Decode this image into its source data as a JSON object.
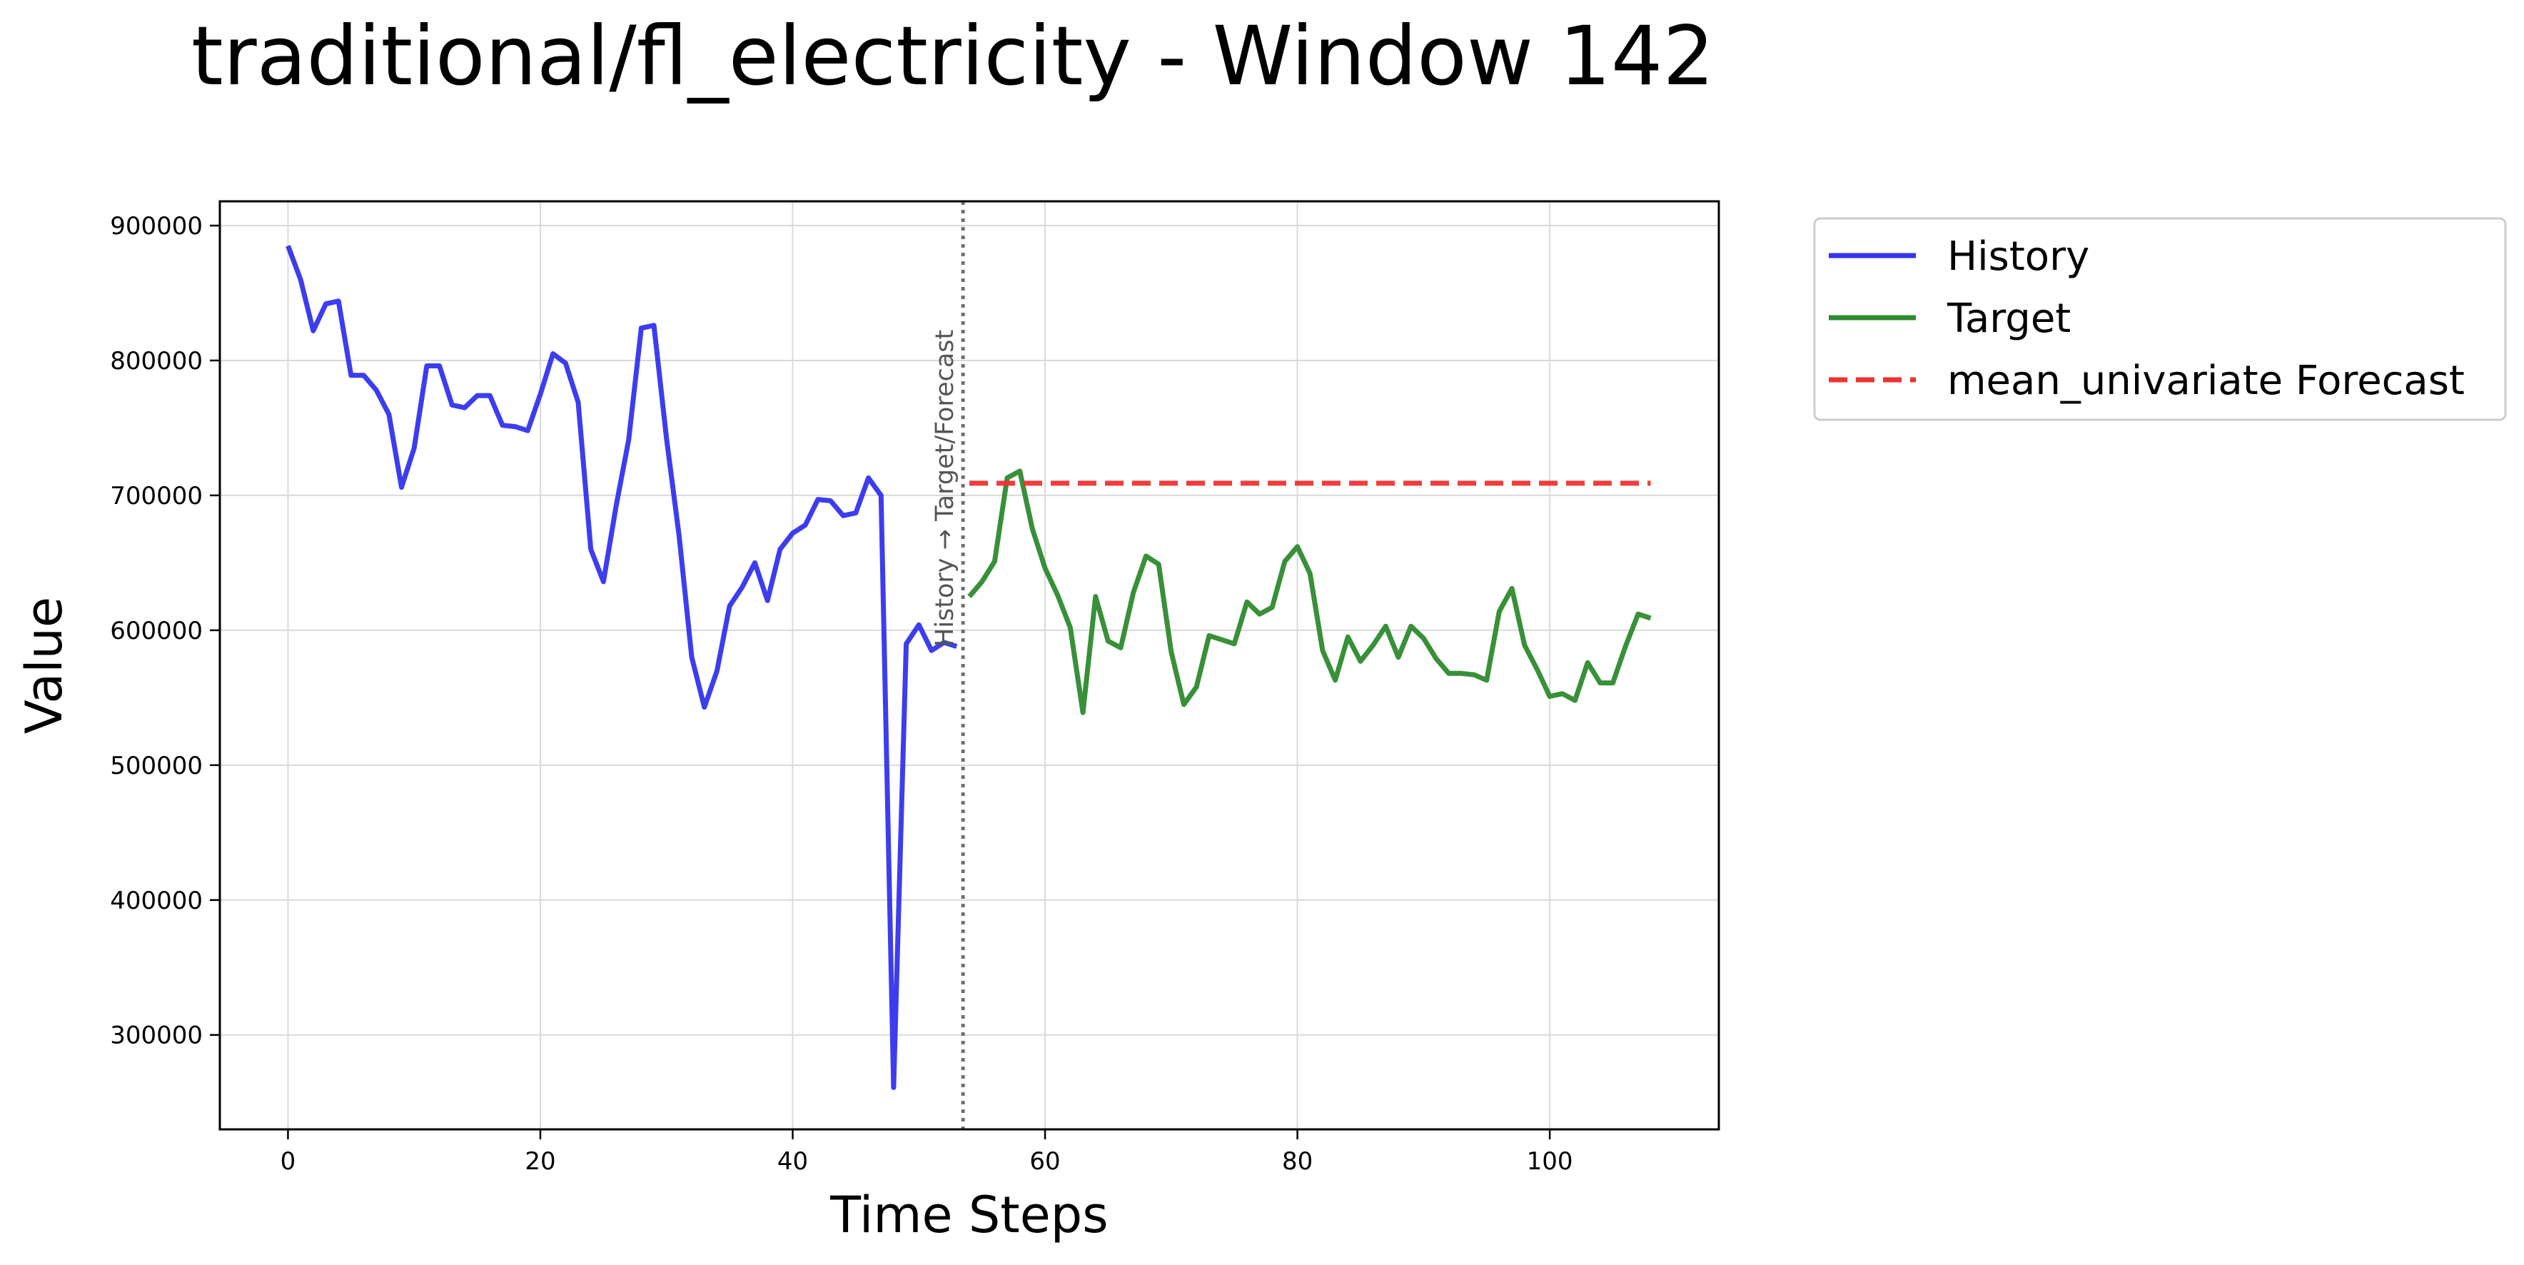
{
  "chart_data": {
    "type": "line",
    "title": "traditional/fl_electricity - Window 142",
    "xlabel": "Time Steps",
    "ylabel": "Value",
    "xlim": [
      -5.4,
      113.4
    ],
    "ylim": [
      230000,
      918000
    ],
    "xticks": [
      0,
      20,
      40,
      60,
      80,
      100
    ],
    "yticks": [
      300000,
      400000,
      500000,
      600000,
      700000,
      800000,
      900000
    ],
    "grid": true,
    "legend_position": "outside-top-right",
    "split_x": 53.5,
    "split_annotation": "History → Target/Forecast",
    "series": [
      {
        "name": "History",
        "color": "#3333ee",
        "style": "solid",
        "x_start": 0,
        "values": [
          885000,
          860000,
          822000,
          842000,
          844000,
          789000,
          789000,
          778000,
          760000,
          706000,
          735000,
          796000,
          796000,
          767000,
          765000,
          774000,
          774000,
          752000,
          751000,
          748000,
          775000,
          805000,
          798000,
          769000,
          660000,
          636000,
          692000,
          741000,
          824000,
          826000,
          742000,
          670000,
          580000,
          543000,
          570000,
          618000,
          632000,
          650000,
          622000,
          660000,
          672000,
          678000,
          697000,
          696000,
          685000,
          687000,
          713000,
          700000,
          261000,
          590000,
          604000,
          585000,
          591000,
          588000
        ]
      },
      {
        "name": "Target",
        "color": "#2d8a2d",
        "style": "solid",
        "x_start": 54,
        "values": [
          625000,
          636000,
          651000,
          713000,
          718000,
          675000,
          646000,
          626000,
          602000,
          539000,
          625000,
          592000,
          587000,
          628000,
          655000,
          649000,
          584000,
          545000,
          558000,
          596000,
          593000,
          590000,
          621000,
          612000,
          617000,
          651000,
          662000,
          642000,
          585000,
          563000,
          595000,
          577000,
          589000,
          603000,
          580000,
          603000,
          594000,
          579000,
          568000,
          568000,
          567000,
          563000,
          614000,
          631000,
          589000,
          571000,
          551000,
          553000,
          548000,
          576000,
          561000,
          561000,
          588000,
          612000,
          609000
        ]
      },
      {
        "name": "mean_univariate Forecast",
        "color": "#ee3333",
        "style": "dashed",
        "x_start": 54,
        "values": [
          709000,
          709000,
          709000,
          709000,
          709000,
          709000,
          709000,
          709000,
          709000,
          709000,
          709000,
          709000,
          709000,
          709000,
          709000,
          709000,
          709000,
          709000,
          709000,
          709000,
          709000,
          709000,
          709000,
          709000,
          709000,
          709000,
          709000,
          709000,
          709000,
          709000,
          709000,
          709000,
          709000,
          709000,
          709000,
          709000,
          709000,
          709000,
          709000,
          709000,
          709000,
          709000,
          709000,
          709000,
          709000,
          709000,
          709000,
          709000,
          709000,
          709000,
          709000,
          709000,
          709000,
          709000,
          709000
        ]
      }
    ]
  }
}
